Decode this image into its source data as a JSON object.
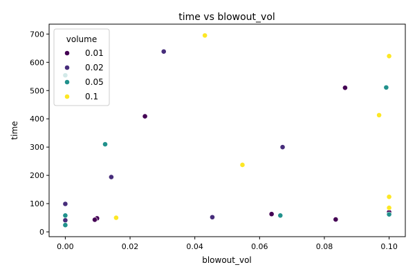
{
  "chart_data": {
    "type": "scatter",
    "title": "time vs blowout_vol",
    "xlabel": "blowout_vol",
    "ylabel": "time",
    "xlim": [
      -0.005,
      0.105
    ],
    "ylim": [
      -17,
      735
    ],
    "xticks": [
      0.0,
      0.02,
      0.04,
      0.06,
      0.08,
      0.1
    ],
    "xtick_labels": [
      "0.00",
      "0.02",
      "0.04",
      "0.06",
      "0.08",
      "0.10"
    ],
    "yticks": [
      0,
      100,
      200,
      300,
      400,
      500,
      600,
      700
    ],
    "ytick_labels": [
      "0",
      "100",
      "200",
      "300",
      "400",
      "500",
      "600",
      "700"
    ],
    "grid": false,
    "legend": {
      "title": "volume",
      "placement": "top-left"
    },
    "series": [
      {
        "name": "0.01",
        "color": "#440154",
        "points": [
          [
            0.0246,
            409
          ],
          [
            0.0864,
            510
          ],
          [
            0.0637,
            63
          ],
          [
            0.0835,
            44
          ],
          [
            0.0098,
            48
          ],
          [
            0.0091,
            43
          ],
          [
            0.1,
            70
          ]
        ]
      },
      {
        "name": "0.02",
        "color": "#472d7b",
        "points": [
          [
            0.0304,
            638
          ],
          [
            0.0671,
            300
          ],
          [
            0.0142,
            194
          ],
          [
            0.0,
            99
          ],
          [
            0.0,
            41
          ],
          [
            0.0454,
            52
          ]
        ]
      },
      {
        "name": "0.05",
        "color": "#21918c",
        "points": [
          [
            0.0991,
            511
          ],
          [
            0.0123,
            310
          ],
          [
            0.0,
            554
          ],
          [
            0.0,
            58
          ],
          [
            0.0,
            24
          ],
          [
            0.0664,
            58
          ],
          [
            0.1,
            62
          ]
        ]
      },
      {
        "name": "0.1",
        "color": "#fde725",
        "points": [
          [
            0.0431,
            695
          ],
          [
            0.1,
            622
          ],
          [
            0.0969,
            413
          ],
          [
            0.0547,
            237
          ],
          [
            0.1,
            124
          ],
          [
            0.1,
            85
          ],
          [
            0.0157,
            50
          ]
        ]
      }
    ]
  }
}
